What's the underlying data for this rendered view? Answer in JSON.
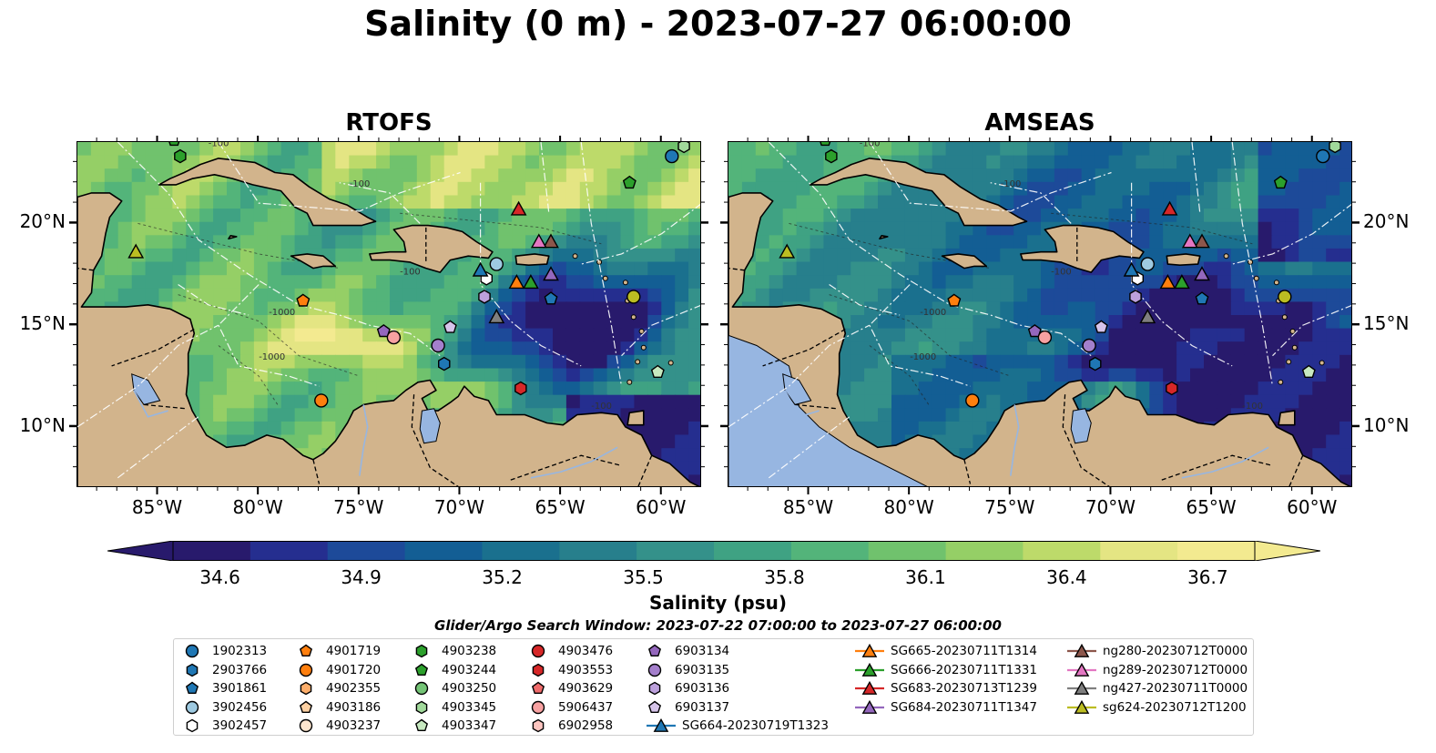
{
  "figure": {
    "title": "Salinity (0 m) - 2023-07-27 06:00:00",
    "search_window": "Glider/Argo Search Window: 2023-07-22 07:00:00 to 2023-07-27 06:00:00"
  },
  "colors": {
    "land": "#d2b48c",
    "lakes": "#97b6e1",
    "colormap": [
      "#281a6c",
      "#252e8f",
      "#1d4a99",
      "#135e94",
      "#1a708e",
      "#277f8c",
      "#34918a",
      "#3fa283",
      "#53b47a",
      "#70c26d",
      "#95cf66",
      "#bdda6a",
      "#e4e583",
      "#f3ea90"
    ]
  },
  "chart_data": [
    {
      "type": "heatmap",
      "title": "RTOFS",
      "lon_range": [
        -89,
        -58
      ],
      "lat_range": [
        7,
        24
      ],
      "xticks": [
        -85,
        -80,
        -75,
        -70,
        -65,
        -60
      ],
      "yticks": [
        10,
        15,
        20
      ],
      "xtick_labels": [
        "85°W",
        "80°W",
        "75°W",
        "70°W",
        "65°W",
        "60°W"
      ],
      "ytick_labels": [
        "10°N",
        "15°N",
        "20°N"
      ],
      "ytick_side": "left"
    },
    {
      "type": "heatmap",
      "title": "AMSEAS",
      "lon_range": [
        -89,
        -58
      ],
      "lat_range": [
        7,
        24
      ],
      "xticks": [
        -85,
        -80,
        -75,
        -70,
        -65,
        -60
      ],
      "yticks": [
        10,
        15,
        20
      ],
      "xtick_labels": [
        "85°W",
        "80°W",
        "75°W",
        "70°W",
        "65°W",
        "60°W"
      ],
      "ytick_labels": [
        "10°N",
        "15°N",
        "20°N"
      ],
      "ytick_side": "right"
    }
  ],
  "colorbar": {
    "label": "Salinity (psu)",
    "vmin": 34.5,
    "vmax": 36.8,
    "ticks": [
      34.6,
      34.9,
      35.2,
      35.5,
      35.8,
      36.1,
      36.4,
      36.7
    ],
    "tick_labels": [
      "34.6",
      "34.9",
      "35.2",
      "35.5",
      "35.8",
      "36.1",
      "36.4",
      "36.7"
    ],
    "extend": "both"
  },
  "contour_labels": [
    "-100",
    "-100",
    "-100",
    "-1000",
    "-1000",
    "-100"
  ],
  "legend": [
    {
      "label": "1902313",
      "marker": "circle",
      "color": "#1f77b4"
    },
    {
      "label": "2903766",
      "marker": "hexagon",
      "color": "#1f77b4"
    },
    {
      "label": "3901861",
      "marker": "pentagon",
      "color": "#1f77b4"
    },
    {
      "label": "3902456",
      "marker": "circle",
      "color": "#9ecae1"
    },
    {
      "label": "3902457",
      "marker": "hexagon",
      "color": "#ffffff"
    },
    {
      "label": "4901719",
      "marker": "pentagon",
      "color": "#ff7f0e"
    },
    {
      "label": "4901720",
      "marker": "circle",
      "color": "#ff7f0e"
    },
    {
      "label": "4902355",
      "marker": "hexagon",
      "color": "#fdae6b"
    },
    {
      "label": "4903186",
      "marker": "pentagon",
      "color": "#fdd0a2"
    },
    {
      "label": "4903237",
      "marker": "circle",
      "color": "#fee6ce"
    },
    {
      "label": "4903238",
      "marker": "hexagon",
      "color": "#2ca02c"
    },
    {
      "label": "4903244",
      "marker": "pentagon",
      "color": "#2ca02c"
    },
    {
      "label": "4903250",
      "marker": "circle",
      "color": "#74c476"
    },
    {
      "label": "4903345",
      "marker": "hexagon",
      "color": "#a1d99b"
    },
    {
      "label": "4903347",
      "marker": "pentagon",
      "color": "#c7e9c0"
    },
    {
      "label": "4903476",
      "marker": "circle",
      "color": "#d62728"
    },
    {
      "label": "4903553",
      "marker": "hexagon",
      "color": "#d62728"
    },
    {
      "label": "4903629",
      "marker": "pentagon",
      "color": "#ef6b6b"
    },
    {
      "label": "5906437",
      "marker": "circle",
      "color": "#f7a1a1"
    },
    {
      "label": "6902958",
      "marker": "hexagon",
      "color": "#fcc5c0"
    },
    {
      "label": "6903134",
      "marker": "pentagon",
      "color": "#9467bd"
    },
    {
      "label": "6903135",
      "marker": "circle",
      "color": "#a47fcc"
    },
    {
      "label": "6903136",
      "marker": "hexagon",
      "color": "#bca0dc"
    },
    {
      "label": "6903137",
      "marker": "pentagon",
      "color": "#d6c4ea"
    },
    {
      "label": "SG664-20230719T1323",
      "marker": "triangle-line",
      "color": "#1f77b4"
    },
    {
      "label": "SG665-20230711T1314",
      "marker": "triangle-line",
      "color": "#ff7f0e"
    },
    {
      "label": "SG666-20230711T1331",
      "marker": "triangle-line",
      "color": "#2ca02c"
    },
    {
      "label": "SG683-20230713T1239",
      "marker": "triangle-line",
      "color": "#d62728"
    },
    {
      "label": "SG684-20230711T1347",
      "marker": "triangle-line",
      "color": "#9467bd"
    },
    {
      "label": "ng280-20230712T0000",
      "marker": "triangle-line",
      "color": "#8c564b"
    },
    {
      "label": "ng289-20230712T0000",
      "marker": "triangle-line",
      "color": "#e377c2"
    },
    {
      "label": "ng427-20230711T0000",
      "marker": "triangle-line",
      "color": "#7f7f7f"
    },
    {
      "label": "sg624-20230712T1200",
      "marker": "triangle-line",
      "color": "#bcbd22"
    }
  ],
  "observations": [
    {
      "lon": -59.5,
      "lat": 23.3,
      "marker": "circle",
      "color": "#1f77b4"
    },
    {
      "lon": -58.9,
      "lat": 23.8,
      "marker": "hexagon",
      "color": "#a1d99b"
    },
    {
      "lon": -61.6,
      "lat": 22.0,
      "marker": "pentagon",
      "color": "#2ca02c"
    },
    {
      "lon": -83.9,
      "lat": 23.3,
      "marker": "hexagon",
      "color": "#2ca02c"
    },
    {
      "lon": -84.2,
      "lat": 24.1,
      "marker": "pentagon",
      "color": "#2ca02c"
    },
    {
      "lon": -77.8,
      "lat": 16.2,
      "marker": "pentagon",
      "color": "#ff7f0e"
    },
    {
      "lon": -73.8,
      "lat": 14.7,
      "marker": "pentagon",
      "color": "#9467bd"
    },
    {
      "lon": -73.3,
      "lat": 14.4,
      "marker": "circle",
      "color": "#f7a1a1"
    },
    {
      "lon": -70.5,
      "lat": 14.9,
      "marker": "pentagon",
      "color": "#d6c4ea"
    },
    {
      "lon": -71.1,
      "lat": 14.0,
      "marker": "circle",
      "color": "#a47fcc"
    },
    {
      "lon": -70.8,
      "lat": 13.1,
      "marker": "hexagon",
      "color": "#1f77b4"
    },
    {
      "lon": -68.8,
      "lat": 16.4,
      "marker": "hexagon",
      "color": "#bca0dc"
    },
    {
      "lon": -68.2,
      "lat": 18.0,
      "marker": "circle",
      "color": "#9ecae1"
    },
    {
      "lon": -68.7,
      "lat": 17.3,
      "marker": "hexagon",
      "color": "#ffffff"
    },
    {
      "lon": -65.5,
      "lat": 16.3,
      "marker": "pentagon",
      "color": "#1f77b4"
    },
    {
      "lon": -76.9,
      "lat": 11.3,
      "marker": "circle",
      "color": "#ff7f0e"
    },
    {
      "lon": -67.0,
      "lat": 11.9,
      "marker": "hexagon",
      "color": "#d62728"
    },
    {
      "lon": -60.2,
      "lat": 12.7,
      "marker": "pentagon",
      "color": "#c7e9c0"
    },
    {
      "lon": -61.4,
      "lat": 16.4,
      "marker": "circle",
      "color": "#bcbd22"
    },
    {
      "lon": -69.0,
      "lat": 17.7,
      "marker": "triangle",
      "color": "#1f77b4"
    },
    {
      "lon": -67.2,
      "lat": 17.1,
      "marker": "triangle",
      "color": "#ff7f0e"
    },
    {
      "lon": -66.5,
      "lat": 17.1,
      "marker": "triangle",
      "color": "#2ca02c"
    },
    {
      "lon": -67.1,
      "lat": 20.7,
      "marker": "triangle",
      "color": "#d62728"
    },
    {
      "lon": -65.5,
      "lat": 17.5,
      "marker": "triangle",
      "color": "#9467bd"
    },
    {
      "lon": -65.5,
      "lat": 19.1,
      "marker": "triangle",
      "color": "#8c564b"
    },
    {
      "lon": -66.1,
      "lat": 19.1,
      "marker": "triangle",
      "color": "#e377c2"
    },
    {
      "lon": -68.2,
      "lat": 15.4,
      "marker": "triangle",
      "color": "#7f7f7f"
    },
    {
      "lon": -86.1,
      "lat": 18.6,
      "marker": "triangle",
      "color": "#bcbd22"
    }
  ]
}
